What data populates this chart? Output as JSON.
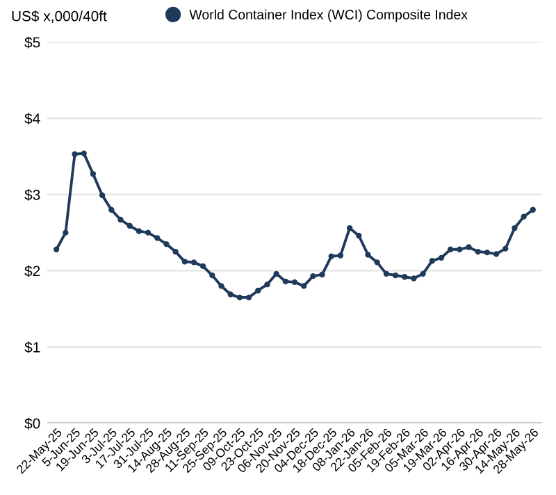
{
  "chart_data": {
    "type": "line",
    "ylabel": "US$ x,000/40ft",
    "categories": [
      "22-May-25",
      null,
      "5-Jun-25",
      null,
      "19-Jun-25",
      null,
      "3-Jul-25",
      null,
      "17-Jul-25",
      null,
      "31-Jul-25",
      null,
      "14-Aug-25",
      null,
      "28-Aug-25",
      null,
      "11-Sep-25",
      null,
      "25-Sep-25",
      null,
      "09-Oct-25",
      null,
      "23-Oct-25",
      null,
      "06-Nov-25",
      null,
      "20-Nov-25",
      null,
      "04-Dec-25",
      null,
      "18-Dec-25",
      null,
      "08-Jan-26",
      null,
      "22-Jan-26",
      null,
      "05-Feb-26",
      null,
      "19-Feb-26",
      null,
      "05-Mar-26",
      null,
      "19-Mar-26",
      null,
      "02-Apr-26",
      null,
      "16-Apr-26",
      null,
      "30-Apr-26",
      null,
      "14-May-26",
      null,
      "28-May-26"
    ],
    "series": [
      {
        "name": "World Container Index (WCI) Composite Index",
        "color": "#1f3a5a",
        "values": [
          2.28,
          2.5,
          3.53,
          3.54,
          3.27,
          2.99,
          2.8,
          2.67,
          2.59,
          2.52,
          2.5,
          2.43,
          2.35,
          2.25,
          2.12,
          2.11,
          2.06,
          1.94,
          1.8,
          1.69,
          1.65,
          1.65,
          1.74,
          1.82,
          1.96,
          1.86,
          1.85,
          1.8,
          1.93,
          1.95,
          2.19,
          2.2,
          2.56,
          2.46,
          2.21,
          2.11,
          1.96,
          1.94,
          1.92,
          1.9,
          1.96,
          2.13,
          2.17,
          2.28,
          2.28,
          2.31,
          2.25,
          2.24,
          2.22,
          2.29,
          2.56,
          2.71,
          2.8
        ]
      }
    ],
    "ylim": [
      0,
      5
    ],
    "yticks": [
      {
        "value": 0,
        "label": "$0"
      },
      {
        "value": 1,
        "label": "$1"
      },
      {
        "value": 2,
        "label": "$2"
      },
      {
        "value": 3,
        "label": "$3"
      },
      {
        "value": 4,
        "label": "$4"
      },
      {
        "value": 5,
        "label": "$5"
      }
    ],
    "grid": "y",
    "legend": "top",
    "marker": "circle",
    "line_style": "solid"
  }
}
